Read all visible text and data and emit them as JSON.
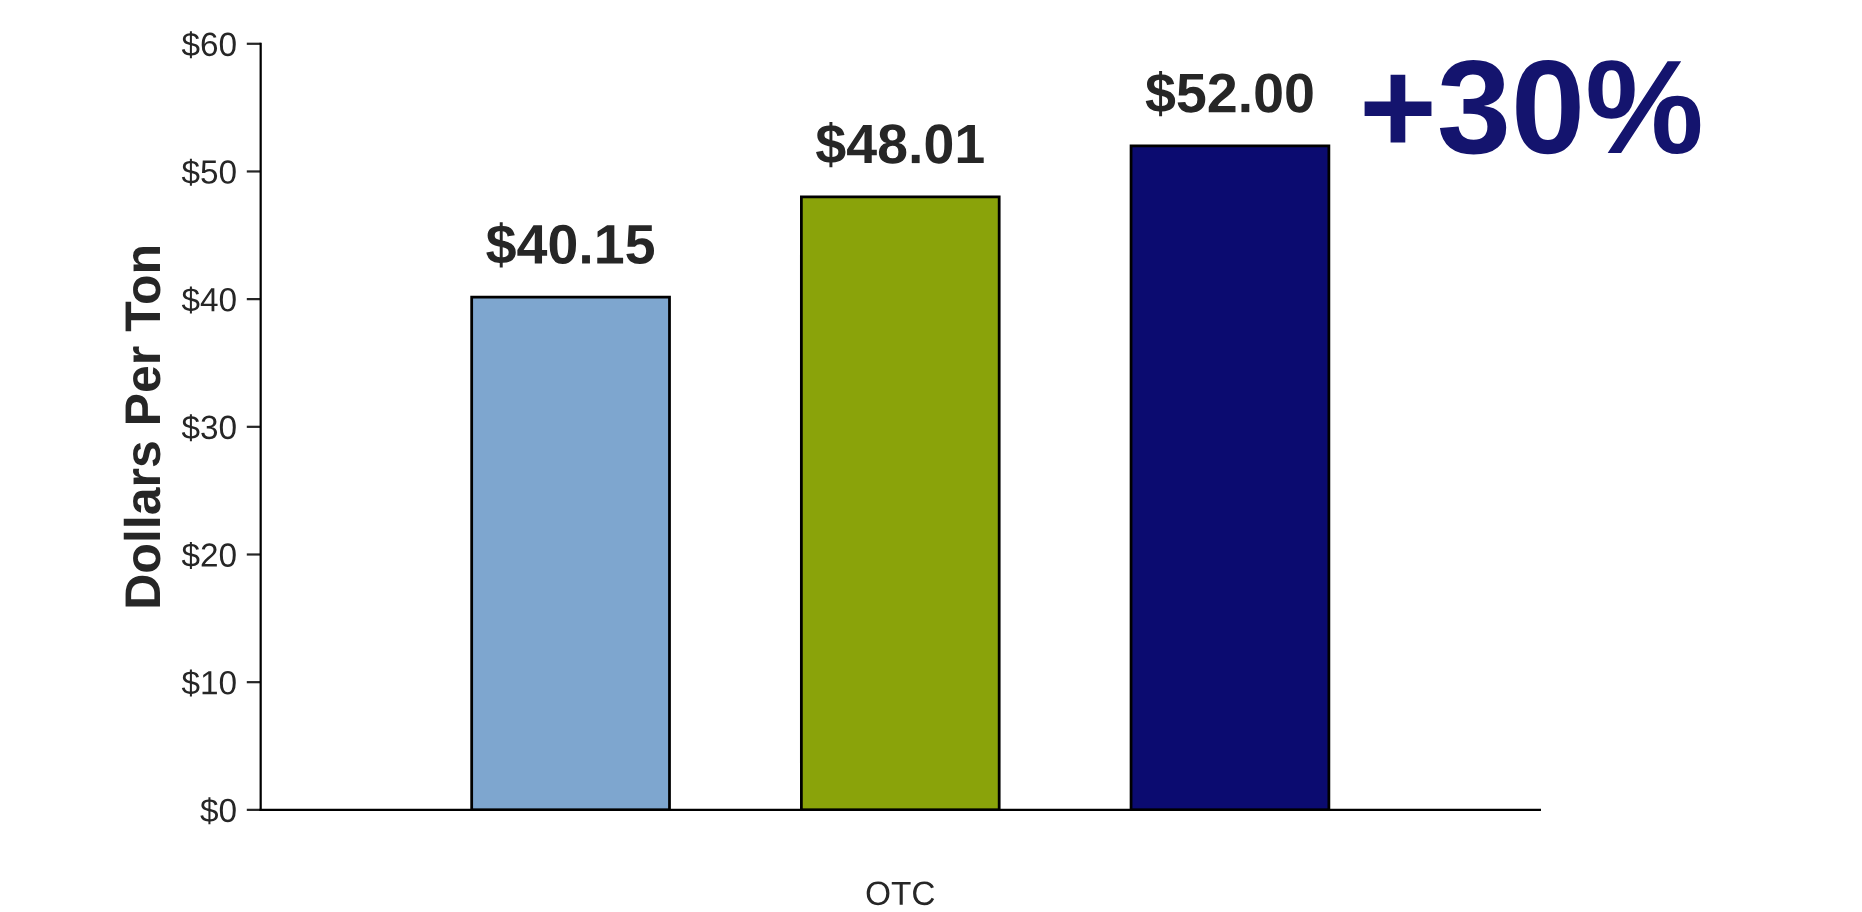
{
  "chart_data": {
    "type": "bar",
    "categories": [
      null,
      null,
      null
    ],
    "values": [
      40.15,
      48.01,
      52.0
    ],
    "colors": [
      "#7ea6cf",
      "#8aa30a",
      "#0b0b70"
    ],
    "value_labels": [
      "$40.15",
      "$48.01",
      "$52.00"
    ],
    "ylabel": "Dollars Per Ton",
    "xlabel": "OTC",
    "ylim": [
      0,
      60
    ],
    "yticks": [
      {
        "value": 0,
        "label": "$0"
      },
      {
        "value": 10,
        "label": "$10"
      },
      {
        "value": 20,
        "label": "$20"
      },
      {
        "value": 30,
        "label": "$30"
      },
      {
        "value": 40,
        "label": "$40"
      },
      {
        "value": 50,
        "label": "$50"
      },
      {
        "value": 60,
        "label": "$60"
      }
    ],
    "annotations": [
      "+30%"
    ],
    "grid": false,
    "legend": false
  }
}
